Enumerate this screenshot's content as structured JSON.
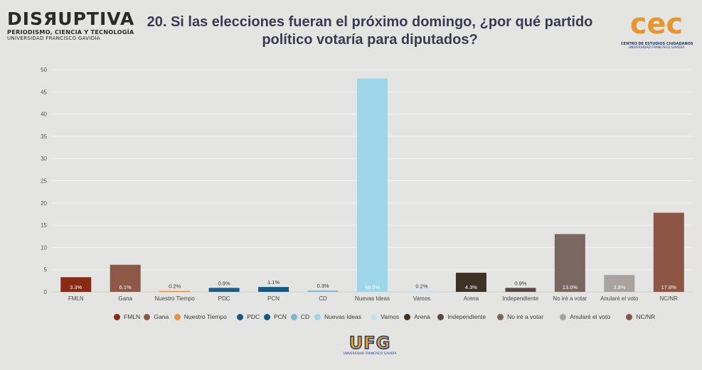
{
  "header": {
    "brand_left": {
      "name": "DISЯUPTIVA",
      "line1": "PERIODISMO, CIENCIA Y TECNOLOGÍA",
      "line2": "UNIVERSIDAD FRANCISCO GAVIDIA"
    },
    "title_line1": "20. Si las elecciones fueran el próximo domingo, ¿por qué partido",
    "title_line2": "político votaría para diputados?",
    "brand_right": {
      "logo_text": "cec",
      "line1": "CENTRO DE ESTUDIOS CIUDADANOS",
      "line2": "UNIVERSIDAD FRANCISCO GAVIDIA"
    }
  },
  "footer": {
    "logo_text": "UFG",
    "logo_sub": "UNIVERSIDAD FRANCISCO GAVIDIA"
  },
  "colors": {
    "background": "#e4e4e2",
    "grid": "#f2f2f2",
    "axis_text": "#555555",
    "title": "#3b3b4f"
  },
  "chart_data": {
    "type": "bar",
    "title": "20. Si las elecciones fueran el próximo domingo, ¿por qué partido político votaría para diputados?",
    "xlabel": "",
    "ylabel": "",
    "ylim": [
      0,
      50
    ],
    "yticks": [
      0,
      5,
      10,
      15,
      20,
      25,
      30,
      35,
      40,
      45,
      50
    ],
    "grid": true,
    "legend_position": "bottom",
    "categories": [
      "FMLN",
      "Gana",
      "Nuestro Tiempo",
      "PDC",
      "PCN",
      "CD",
      "Nuevas Ideas",
      "Vamos",
      "Arena",
      "Independiente",
      "No iré a votar",
      "Anularé el voto",
      "NC/NR"
    ],
    "values": [
      3.3,
      6.1,
      0.2,
      0.9,
      1.1,
      0.3,
      48.0,
      0.2,
      4.3,
      0.9,
      13.0,
      3.8,
      17.8
    ],
    "value_labels": [
      "3.3%",
      "6.1%",
      "0.2%",
      "0.9%",
      "1.1%",
      "0.3%",
      "48.0%",
      "0.2%",
      "4.3%",
      "0.9%",
      "13.0%",
      "3.8%",
      "17.8%"
    ],
    "colors": [
      "#8b2a14",
      "#8e5846",
      "#e8913d",
      "#1d5a80",
      "#145a82",
      "#7ab7d7",
      "#9fd7ea",
      "#c2e3ee",
      "#3e3126",
      "#5b4844",
      "#7a6860",
      "#a8a39f",
      "#8e5444"
    ]
  }
}
